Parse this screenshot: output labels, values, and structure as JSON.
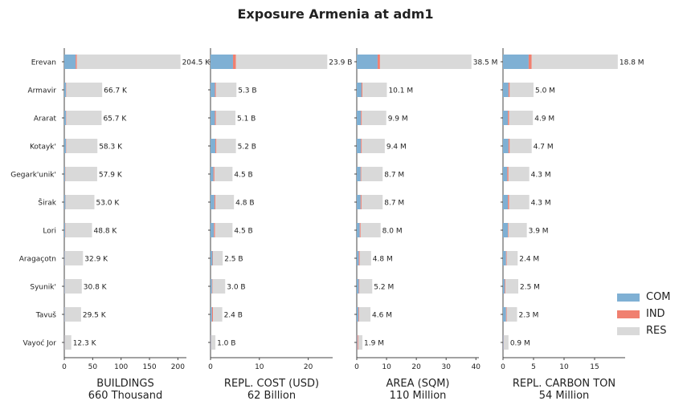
{
  "title": "Exposure Armenia at adm1",
  "colors": {
    "COM": "#7fb0d4",
    "IND": "#f08070",
    "RES": "#d9d9d9"
  },
  "legend": [
    "COM",
    "IND",
    "RES"
  ],
  "chart_data": {
    "type": "bar",
    "orientation": "horizontal-stacked",
    "categories": [
      "Erevan",
      "Armavir",
      "Ararat",
      "Kotayk'",
      "Gegark'unik'",
      "Širak",
      "Lori",
      "Aragaçotn",
      "Syunik'",
      "Tavuš",
      "Vayoć Jor"
    ],
    "panels": [
      {
        "xlabel": "BUILDINGS",
        "total": "660 Thousand",
        "xlim": [
          0,
          215
        ],
        "ticks": [
          0,
          50,
          100,
          150,
          200
        ],
        "series": [
          {
            "name": "COM",
            "values": [
              20,
              3,
              3,
              3,
              1.5,
              2,
              1.5,
              1,
              1,
              1,
              0.5
            ]
          },
          {
            "name": "IND",
            "values": [
              2,
              0.5,
              0.5,
              0.5,
              0.5,
              0.5,
              0.5,
              0.3,
              0.3,
              0.3,
              0.2
            ]
          },
          {
            "name": "RES",
            "values": [
              182.5,
              63.2,
              62.2,
              54.8,
              55.9,
              50.5,
              46.8,
              31.6,
              29.5,
              28.2,
              11.6
            ]
          }
        ],
        "labels": [
          "204.5 K",
          "66.7 K",
          "65.7 K",
          "58.3 K",
          "57.9 K",
          "53.0 K",
          "48.8 K",
          "32.9 K",
          "30.8 K",
          "29.5 K",
          "12.3 K"
        ]
      },
      {
        "xlabel": "REPL. COST (USD)",
        "total": "62 Billion",
        "xlim": [
          0,
          25
        ],
        "ticks": [
          0,
          10,
          20
        ],
        "series": [
          {
            "name": "COM",
            "values": [
              4.6,
              0.9,
              0.9,
              1.0,
              0.6,
              0.8,
              0.7,
              0.4,
              0.3,
              0.3,
              0.1
            ]
          },
          {
            "name": "IND",
            "values": [
              0.6,
              0.2,
              0.2,
              0.2,
              0.2,
              0.2,
              0.2,
              0.1,
              0.1,
              0.2,
              0.05
            ]
          },
          {
            "name": "RES",
            "values": [
              18.7,
              4.2,
              4.0,
              4.0,
              3.7,
              3.8,
              3.6,
              2.0,
              2.6,
              1.9,
              0.85
            ]
          }
        ],
        "labels": [
          "23.9 B",
          "5.3 B",
          "5.1 B",
          "5.2 B",
          "4.5 B",
          "4.8 B",
          "4.5 B",
          "2.5 B",
          "3.0 B",
          "2.4 B",
          "1.0 B"
        ]
      },
      {
        "xlabel": "AREA (SQM)",
        "total": "110 Million",
        "xlim": [
          0,
          41
        ],
        "ticks": [
          0,
          10,
          20,
          30,
          40
        ],
        "series": [
          {
            "name": "COM",
            "values": [
              7.0,
              1.6,
              1.4,
              1.4,
              1.3,
              1.3,
              1.0,
              0.7,
              0.7,
              0.6,
              0.2
            ]
          },
          {
            "name": "IND",
            "values": [
              0.8,
              0.3,
              0.3,
              0.3,
              0.2,
              0.3,
              0.3,
              0.3,
              0.2,
              0.2,
              0.3
            ]
          },
          {
            "name": "RES",
            "values": [
              30.7,
              8.2,
              8.2,
              7.7,
              7.2,
              7.1,
              6.7,
              3.8,
              4.3,
              3.8,
              1.4
            ]
          }
        ],
        "labels": [
          "38.5 M",
          "10.1 M",
          "9.9 M",
          "9.4 M",
          "8.7 M",
          "8.7 M",
          "8.0 M",
          "4.8 M",
          "5.2 M",
          "4.6 M",
          "1.9 M"
        ]
      },
      {
        "xlabel": "REPL. CARBON TON",
        "total": "54 Million",
        "xlim": [
          0,
          20
        ],
        "ticks": [
          0,
          5,
          10,
          15
        ],
        "series": [
          {
            "name": "COM",
            "values": [
              4.2,
              0.9,
              0.8,
              0.9,
              0.7,
              0.8,
              0.8,
              0.5,
              0.3,
              0.5,
              0.1
            ]
          },
          {
            "name": "IND",
            "values": [
              0.5,
              0.2,
              0.2,
              0.2,
              0.2,
              0.2,
              0.1,
              0.1,
              0.1,
              0.1,
              0.05
            ]
          },
          {
            "name": "RES",
            "values": [
              14.1,
              3.9,
              3.9,
              3.6,
              3.4,
              3.3,
              3.0,
              1.8,
              2.1,
              1.7,
              0.75
            ]
          }
        ],
        "labels": [
          "18.8 M",
          "5.0 M",
          "4.9 M",
          "4.7 M",
          "4.3 M",
          "4.3 M",
          "3.9 M",
          "2.4 M",
          "2.5 M",
          "2.3 M",
          "0.9 M"
        ]
      }
    ]
  }
}
